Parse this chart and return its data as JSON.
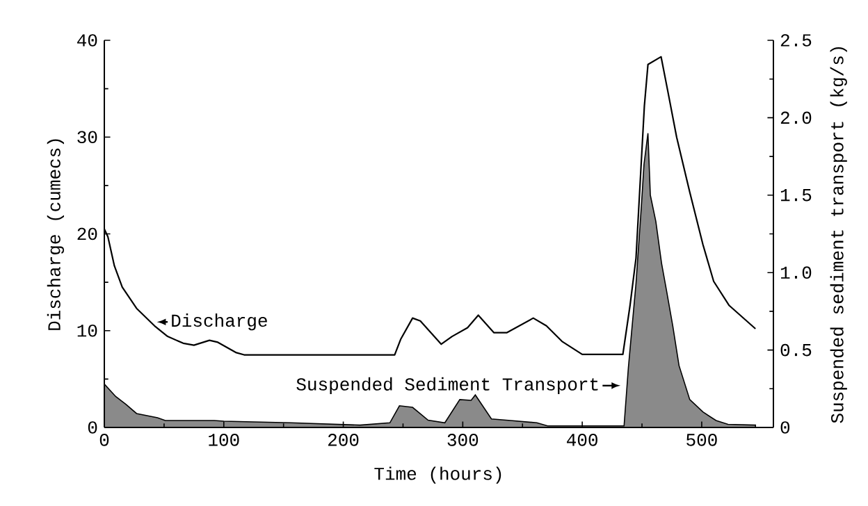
{
  "chart_data": {
    "type": "line",
    "xlabel": "Time (hours)",
    "ylabel": "Discharge (cumecs)",
    "y2label": "Suspended sediment transport (kg/s)",
    "xlim": [
      0,
      560
    ],
    "xticks": [
      0,
      100,
      200,
      300,
      400,
      500
    ],
    "ylim": [
      0,
      40
    ],
    "yticks": [
      0,
      10,
      20,
      30,
      40
    ],
    "y2lim": [
      0,
      2.5
    ],
    "y2ticks": [
      0,
      0.5,
      {
        "value": 1,
        "label": "1.0"
      },
      1.5,
      {
        "value": 2,
        "label": "2.0"
      },
      2.5
    ],
    "series": [
      {
        "name": "Suspended Sediment Transport",
        "type": "area",
        "axis": "y2",
        "color": "#8a8a8a",
        "x": [
          0,
          9.5,
          18,
          27,
          44.5,
          51,
          92,
          100,
          156,
          214,
          239,
          247,
          258,
          271,
          285,
          297.5,
          307,
          310.5,
          324,
          340,
          362,
          371,
          435,
          438.6,
          445,
          449.5,
          451.7,
          455,
          457,
          461.6,
          466.4,
          470.4,
          475.8,
          481,
          490,
          501,
          512,
          522,
          545
        ],
        "values": [
          0.28,
          0.2,
          0.15,
          0.09,
          0.063,
          0.045,
          0.045,
          0.04,
          0.03,
          0.015,
          0.03,
          0.14,
          0.13,
          0.047,
          0.03,
          0.18,
          0.175,
          0.21,
          0.055,
          0.045,
          0.03,
          0.01,
          0.01,
          0.385,
          0.93,
          1.43,
          1.7,
          1.9,
          1.5,
          1.33,
          1.06,
          0.89,
          0.655,
          0.4,
          0.18,
          0.1,
          0.045,
          0.02,
          0.015
        ]
      },
      {
        "name": "Discharge",
        "axis": "y",
        "color": "#000000",
        "x": [
          0,
          3,
          8.4,
          15,
          27,
          42,
          53,
          66,
          75,
          88,
          95,
          110,
          117,
          243,
          248,
          258,
          264.5,
          282,
          291,
          304,
          313,
          326,
          337,
          359,
          370,
          383,
          400,
          434,
          440,
          445,
          452,
          455,
          466,
          472,
          479,
          490,
          501,
          510,
          523,
          545
        ],
        "values": [
          20.5,
          19.7,
          16.7,
          14.5,
          12.3,
          10.5,
          9.4,
          8.7,
          8.5,
          9.0,
          8.8,
          7.75,
          7.5,
          7.5,
          9.1,
          11.3,
          11.0,
          8.6,
          9.4,
          10.3,
          11.6,
          9.8,
          9.8,
          11.3,
          10.5,
          8.9,
          7.55,
          7.55,
          12.6,
          17.5,
          33.2,
          37.5,
          38.3,
          34.5,
          30,
          24.3,
          18.9,
          15.1,
          12.6,
          10.2
        ]
      }
    ]
  }
}
